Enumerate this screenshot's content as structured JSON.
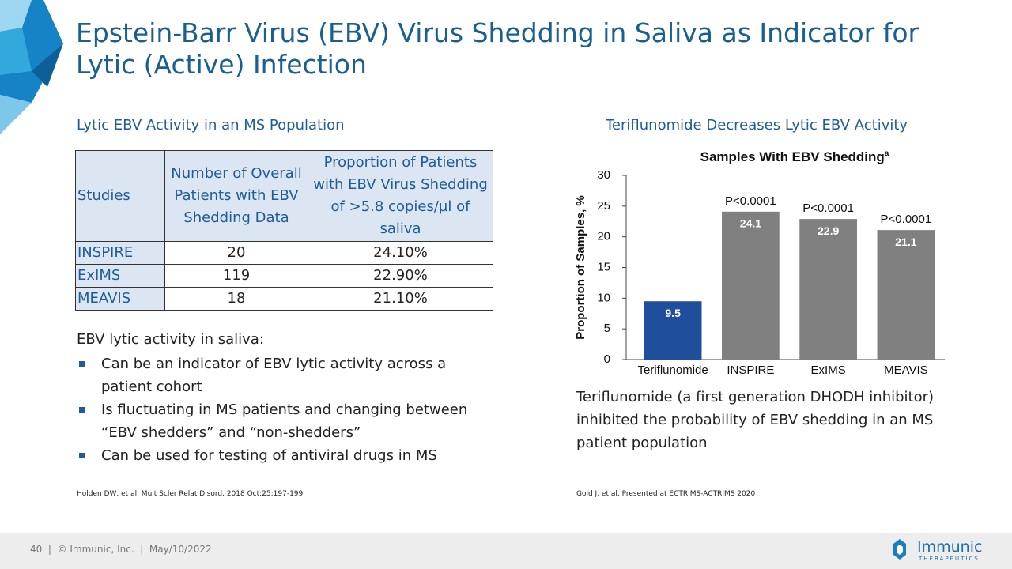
{
  "title": "Epstein-Barr Virus (EBV) Virus Shedding in Saliva as Indicator for Lytic (Active) Infection",
  "left": {
    "heading": "Lytic EBV Activity in an MS Population",
    "table": {
      "header": [
        "Studies",
        "Number of Overall Patients with EBV Shedding Data",
        "Proportion of Patients with EBV Virus Shedding of >5.8 copies/µl of saliva"
      ],
      "rows": [
        [
          "INSPIRE",
          "20",
          "24.10%"
        ],
        [
          "ExIMS",
          "119",
          "22.90%"
        ],
        [
          "MEAVIS",
          "18",
          "21.10%"
        ]
      ]
    },
    "intro": "EBV lytic activity in saliva:",
    "bullets": [
      "Can be an indicator of EBV lytic activity across a patient cohort",
      "Is fluctuating in MS patients and changing between “EBV shedders” and “non-shedders”",
      "Can be used for testing of antiviral drugs in MS"
    ],
    "citation": "Holden DW, et al. Mult Scler Relat Disord. 2018 Oct;25:197-199"
  },
  "right": {
    "heading": "Teriflunomide Decreases Lytic EBV Activity",
    "text": "Teriflunomide (a first generation DHODH inhibitor) inhibited the probability of EBV shedding in an MS patient population",
    "citation": "Gold J, et al. Presented at ECTRIMS-ACTRIMS 2020"
  },
  "chart_data": {
    "type": "bar",
    "title": "Samples With EBV Shedding",
    "title_superscript": "a",
    "y_label": "Proportion of Samples, %",
    "categories": [
      "Teriflunomide",
      "INSPIRE",
      "ExIMS",
      "MEAVIS"
    ],
    "values": [
      9.5,
      24.1,
      22.9,
      21.1
    ],
    "colors": [
      "#1f4e9c",
      "#808080",
      "#808080",
      "#808080"
    ],
    "p_values": [
      null,
      "P<0.0001",
      "P<0.0001",
      "P<0.0001"
    ],
    "ylim": [
      0,
      30
    ],
    "yticks": [
      0,
      5,
      10,
      15,
      20,
      25,
      30
    ],
    "grid": false
  },
  "footer": {
    "text": "40  |  © Immunic, Inc.  |  May/10/2022",
    "logo": "Immunic",
    "logo_sub": "THERAPEUTICS"
  }
}
